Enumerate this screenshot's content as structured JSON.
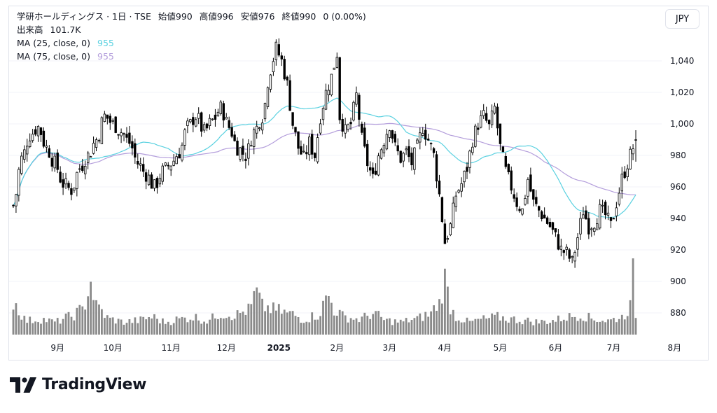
{
  "header": {
    "symbol_line": "学研ホールディングス · 1日 · TSE",
    "ohlc": [
      {
        "label": "始値",
        "value": "990"
      },
      {
        "label": "高値",
        "value": "996"
      },
      {
        "label": "安値",
        "value": "976"
      },
      {
        "label": "終値",
        "value": "990"
      }
    ],
    "change": "0 (0.00%)",
    "volume_label": "出来高",
    "volume_value": "101.7K",
    "indicators": [
      {
        "label": "MA (25, close, 0)",
        "value": "955",
        "color": "#5ad1e0"
      },
      {
        "label": "MA (75, close, 0)",
        "value": "955",
        "color": "#b39ddb"
      }
    ],
    "currency_button": "JPY"
  },
  "brand": {
    "name": "TradingView",
    "icon": "tradingview-logo-icon"
  },
  "colors": {
    "up": "#ffffff",
    "down": "#000000",
    "wick": "#000000",
    "volume": "#8a8a8a",
    "ma25": "#5ad1e0",
    "ma75": "#b39ddb",
    "grid": "#f0f3fa"
  },
  "chart_data": {
    "type": "candlestick",
    "y_axis": {
      "ticks": [
        880,
        900,
        920,
        940,
        960,
        980,
        1000,
        1020,
        1040
      ],
      "range": [
        866,
        1060
      ]
    },
    "x_axis": {
      "labels": [
        {
          "text": "9月",
          "day": 16,
          "bold": false
        },
        {
          "text": "10月",
          "day": 36,
          "bold": false
        },
        {
          "text": "11月",
          "day": 57,
          "bold": false
        },
        {
          "text": "12月",
          "day": 77,
          "bold": false
        },
        {
          "text": "2025",
          "day": 96,
          "bold": true
        },
        {
          "text": "2月",
          "day": 117,
          "bold": false
        },
        {
          "text": "3月",
          "day": 136,
          "bold": false
        },
        {
          "text": "4月",
          "day": 156,
          "bold": false
        },
        {
          "text": "5月",
          "day": 176,
          "bold": false
        },
        {
          "text": "6月",
          "day": 196,
          "bold": false
        },
        {
          "text": "7月",
          "day": 217,
          "bold": false
        },
        {
          "text": "8月",
          "day": 239,
          "bold": false
        }
      ]
    },
    "last": {
      "open": 990,
      "high": 996,
      "low": 976,
      "close": 990,
      "volume": "101.7K"
    },
    "ma25_last": 955,
    "ma75_last": 955,
    "close_keypoints": [
      [
        0,
        948
      ],
      [
        3,
        978
      ],
      [
        6,
        993
      ],
      [
        9,
        998
      ],
      [
        12,
        985
      ],
      [
        15,
        975
      ],
      [
        18,
        962
      ],
      [
        21,
        958
      ],
      [
        24,
        972
      ],
      [
        27,
        980
      ],
      [
        30,
        990
      ],
      [
        33,
        1005
      ],
      [
        36,
        1000
      ],
      [
        39,
        995
      ],
      [
        42,
        988
      ],
      [
        45,
        975
      ],
      [
        48,
        968
      ],
      [
        51,
        960
      ],
      [
        54,
        970
      ],
      [
        57,
        975
      ],
      [
        60,
        982
      ],
      [
        63,
        998
      ],
      [
        66,
        1005
      ],
      [
        69,
        995
      ],
      [
        72,
        1002
      ],
      [
        75,
        1010
      ],
      [
        78,
        998
      ],
      [
        81,
        985
      ],
      [
        84,
        980
      ],
      [
        87,
        995
      ],
      [
        90,
        1005
      ],
      [
        93,
        1035
      ],
      [
        95,
        1048
      ],
      [
        97,
        1040
      ],
      [
        99,
        1025
      ],
      [
        101,
        1000
      ],
      [
        103,
        985
      ],
      [
        105,
        978
      ],
      [
        107,
        988
      ],
      [
        109,
        980
      ],
      [
        111,
        1005
      ],
      [
        113,
        1020
      ],
      [
        115,
        1030
      ],
      [
        117,
        1045
      ],
      [
        118,
        1005
      ],
      [
        120,
        995
      ],
      [
        122,
        1000
      ],
      [
        124,
        1018
      ],
      [
        126,
        990
      ],
      [
        128,
        975
      ],
      [
        130,
        965
      ],
      [
        132,
        980
      ],
      [
        134,
        990
      ],
      [
        136,
        1000
      ],
      [
        138,
        985
      ],
      [
        140,
        978
      ],
      [
        142,
        982
      ],
      [
        144,
        975
      ],
      [
        146,
        985
      ],
      [
        148,
        998
      ],
      [
        150,
        990
      ],
      [
        152,
        980
      ],
      [
        154,
        955
      ],
      [
        156,
        925
      ],
      [
        158,
        935
      ],
      [
        160,
        955
      ],
      [
        162,
        962
      ],
      [
        164,
        972
      ],
      [
        166,
        990
      ],
      [
        168,
        1000
      ],
      [
        170,
        1005
      ],
      [
        172,
        998
      ],
      [
        174,
        1010
      ],
      [
        176,
        985
      ],
      [
        178,
        970
      ],
      [
        180,
        960
      ],
      [
        182,
        950
      ],
      [
        184,
        945
      ],
      [
        186,
        965
      ],
      [
        188,
        950
      ],
      [
        190,
        945
      ],
      [
        192,
        940
      ],
      [
        194,
        935
      ],
      [
        196,
        928
      ],
      [
        198,
        920
      ],
      [
        200,
        918
      ],
      [
        202,
        912
      ],
      [
        204,
        928
      ],
      [
        206,
        945
      ],
      [
        208,
        935
      ],
      [
        210,
        938
      ],
      [
        212,
        945
      ],
      [
        214,
        942
      ],
      [
        216,
        935
      ],
      [
        218,
        950
      ],
      [
        220,
        965
      ],
      [
        222,
        975
      ],
      [
        224,
        985
      ],
      [
        225,
        990
      ]
    ],
    "volume_keypoints": [
      [
        0,
        45
      ],
      [
        5,
        20
      ],
      [
        10,
        22
      ],
      [
        15,
        18
      ],
      [
        20,
        25
      ],
      [
        25,
        35
      ],
      [
        28,
        75
      ],
      [
        30,
        40
      ],
      [
        35,
        22
      ],
      [
        40,
        18
      ],
      [
        45,
        20
      ],
      [
        50,
        25
      ],
      [
        55,
        18
      ],
      [
        60,
        22
      ],
      [
        65,
        25
      ],
      [
        70,
        20
      ],
      [
        75,
        30
      ],
      [
        80,
        28
      ],
      [
        85,
        35
      ],
      [
        88,
        60
      ],
      [
        90,
        40
      ],
      [
        95,
        35
      ],
      [
        100,
        30
      ],
      [
        105,
        22
      ],
      [
        110,
        28
      ],
      [
        114,
        55
      ],
      [
        116,
        35
      ],
      [
        120,
        25
      ],
      [
        125,
        22
      ],
      [
        130,
        30
      ],
      [
        135,
        20
      ],
      [
        140,
        18
      ],
      [
        145,
        22
      ],
      [
        150,
        28
      ],
      [
        154,
        45
      ],
      [
        156,
        80
      ],
      [
        158,
        40
      ],
      [
        160,
        25
      ],
      [
        165,
        18
      ],
      [
        170,
        22
      ],
      [
        175,
        25
      ],
      [
        180,
        22
      ],
      [
        185,
        20
      ],
      [
        190,
        18
      ],
      [
        195,
        20
      ],
      [
        200,
        25
      ],
      [
        205,
        28
      ],
      [
        210,
        22
      ],
      [
        215,
        20
      ],
      [
        220,
        25
      ],
      [
        223,
        40
      ],
      [
        224,
        85
      ],
      [
        225,
        30
      ]
    ]
  }
}
